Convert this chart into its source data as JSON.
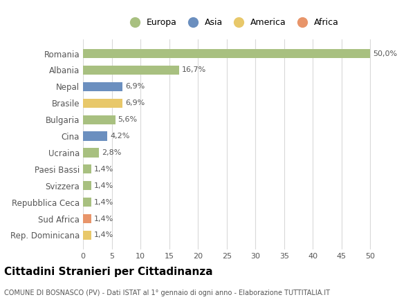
{
  "categories": [
    "Romania",
    "Albania",
    "Nepal",
    "Brasile",
    "Bulgaria",
    "Cina",
    "Ucraina",
    "Paesi Bassi",
    "Svizzera",
    "Repubblica Ceca",
    "Sud Africa",
    "Rep. Dominicana"
  ],
  "values": [
    50.0,
    16.7,
    6.9,
    6.9,
    5.6,
    4.2,
    2.8,
    1.4,
    1.4,
    1.4,
    1.4,
    1.4
  ],
  "labels": [
    "50,0%",
    "16,7%",
    "6,9%",
    "6,9%",
    "5,6%",
    "4,2%",
    "2,8%",
    "1,4%",
    "1,4%",
    "1,4%",
    "1,4%",
    "1,4%"
  ],
  "colors": [
    "#a8c080",
    "#a8c080",
    "#6b8fbf",
    "#e8c86a",
    "#a8c080",
    "#6b8fbf",
    "#a8c080",
    "#a8c080",
    "#a8c080",
    "#a8c080",
    "#e8956a",
    "#e8c86a"
  ],
  "legend_labels": [
    "Europa",
    "Asia",
    "America",
    "Africa"
  ],
  "legend_colors": [
    "#a8c080",
    "#6b8fbf",
    "#e8c86a",
    "#e8956a"
  ],
  "title": "Cittadini Stranieri per Cittadinanza",
  "subtitle": "COMUNE DI BOSNASCO (PV) - Dati ISTAT al 1° gennaio di ogni anno - Elaborazione TUTTITALIA.IT",
  "xlim": [
    0,
    52
  ],
  "xticks": [
    0,
    5,
    10,
    15,
    20,
    25,
    30,
    35,
    40,
    45,
    50
  ],
  "bg_color": "#ffffff",
  "grid_color": "#d9d9d9"
}
